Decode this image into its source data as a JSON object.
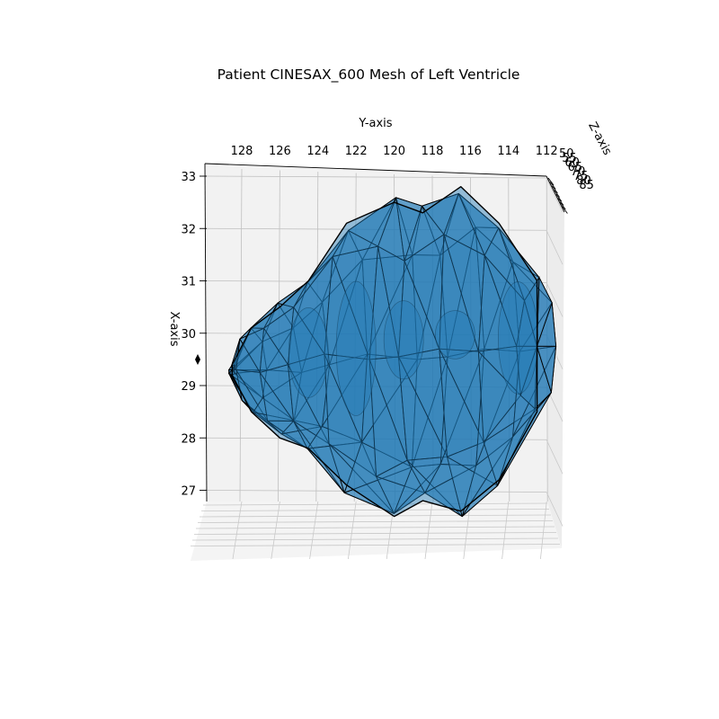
{
  "chart_data": {
    "type": "surface3d",
    "title": "Patient CINESAX_600 Mesh of Left Ventricle",
    "xlabel": "X-axis",
    "ylabel": "Y-axis",
    "zlabel": "Z-axis",
    "y_ticks": [
      "128",
      "126",
      "124",
      "122",
      "120",
      "118",
      "116",
      "114",
      "112"
    ],
    "x_ticks": [
      "33",
      "32",
      "31",
      "30",
      "29",
      "28",
      "27"
    ],
    "z_ticks": [
      "50",
      "55",
      "60",
      "65",
      "70",
      "75",
      "80",
      "85"
    ],
    "ylim": [
      129,
      112
    ],
    "xlim": [
      26.8,
      33.2
    ],
    "grid": true,
    "mesh": {
      "face_color": "#1f77b4",
      "edge_color": "#000000",
      "ring_y": [
        128.5,
        127.5,
        126,
        124.5,
        122.5,
        120,
        118.5,
        116.5,
        114.5,
        112.5
      ],
      "ring_x_max": [
        29.4,
        30.1,
        30.5,
        31.0,
        32.1,
        32.5,
        32.3,
        32.8,
        32.1,
        31.0
      ],
      "ring_x_min": [
        29.2,
        28.5,
        28.0,
        27.8,
        27.1,
        26.5,
        26.8,
        26.6,
        27.2,
        28.5
      ],
      "mid_rings_y": [
        124.5,
        122,
        119.5,
        116.8,
        113.5
      ]
    }
  },
  "colors": {
    "pane": "#f2f2f2",
    "grid": "#b0b0b0",
    "mesh_face": "#1f77b4",
    "mesh_edge": "#000000"
  }
}
